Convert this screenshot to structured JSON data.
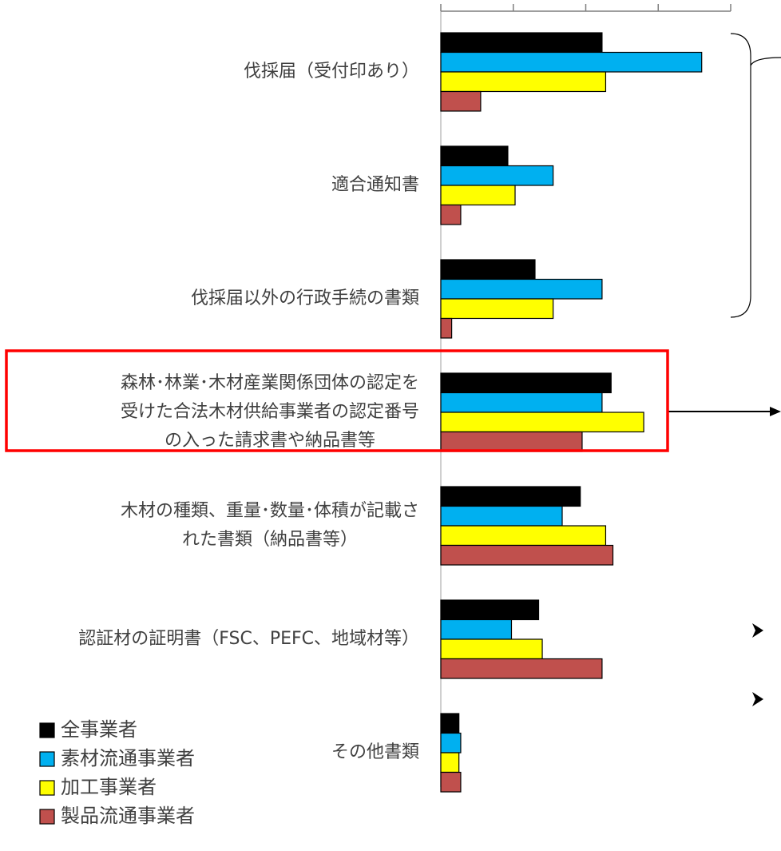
{
  "chart_data": {
    "type": "bar",
    "orientation": "horizontal",
    "categories": [
      "伐採届（受付印あり）",
      "適合通知書",
      "伐採届以外の行政手続の書類",
      "森林･林業･木材産業関係団体の認定を\n受けた合法木材供給事業者の認定番号\nの入った請求書や納品書等",
      "木材の種類、重量･数量･体積が記載さ\nれた書類（納品書等）",
      "認証材の証明書（FSC、PEFC、地域材等）",
      "その他書類"
    ],
    "series": [
      {
        "name": "全事業者",
        "color": "#000000",
        "values": [
          44.5,
          18.5,
          26,
          47,
          38.5,
          27,
          5
        ]
      },
      {
        "name": "素材流通事業者",
        "color": "#00b0f0",
        "values": [
          72,
          31,
          44.5,
          44.5,
          33.5,
          19.5,
          5.5
        ]
      },
      {
        "name": "加工事業者",
        "color": "#ffff00",
        "values": [
          45.5,
          20.5,
          31,
          56,
          45.5,
          28,
          5
        ]
      },
      {
        "name": "製品流通事業者",
        "color": "#c0504d",
        "values": [
          11,
          5.5,
          3,
          39,
          47.5,
          44.5,
          5.5
        ]
      }
    ],
    "xlim": [
      0,
      80
    ],
    "xticks": [
      0,
      20,
      40,
      60,
      80
    ],
    "highlight_category": 3
  }
}
